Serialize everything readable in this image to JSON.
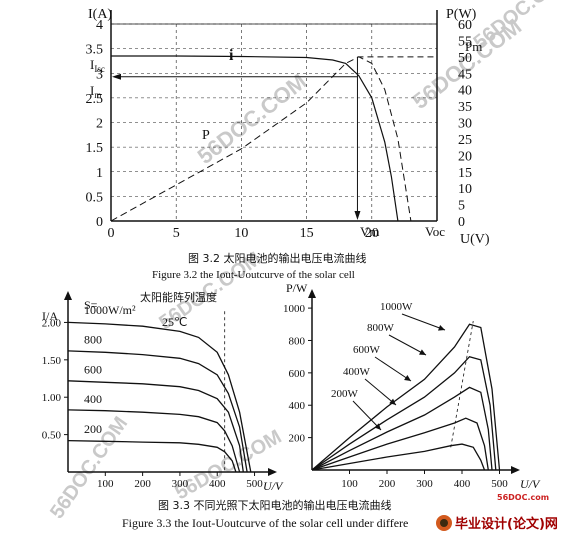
{
  "fig1": {
    "y_left_label": "I(A)",
    "y_right_label": "P(W)",
    "x_label": "U(V)",
    "y_left_ticks": [
      "0",
      "0.5",
      "1",
      "1.5",
      "2",
      "2.5",
      "3",
      "3.5",
      "4"
    ],
    "y_right_ticks": [
      "0",
      "5",
      "10",
      "15",
      "20",
      "25",
      "30",
      "35",
      "40",
      "45",
      "50",
      "55",
      "60"
    ],
    "x_ticks": [
      "0",
      "5",
      "10",
      "15",
      "20"
    ],
    "labels": {
      "isc": "Isc",
      "im": "Im",
      "i_curve": "i",
      "p_curve": "P",
      "pm": "Pm",
      "vm": "Vm",
      "voc": "Voc"
    },
    "caption_cn": "图 3.2  太阳电池的输出电压电流曲线",
    "caption_en": "Figure 3.2  the Iout-Uoutcurve of the solar cell"
  },
  "fig2": {
    "y_label": "I/A",
    "x_label": "U/V",
    "s_label": "S=",
    "header": "太阳能阵列温度",
    "temp": "25℃",
    "irradiances": [
      "1000W/m²",
      "800",
      "600",
      "400",
      "200"
    ],
    "y_ticks": [
      "0.50",
      "1.00",
      "1.50",
      "2.00"
    ],
    "x_ticks": [
      "100",
      "200",
      "300",
      "400",
      "500"
    ]
  },
  "fig3": {
    "y_label": "P/W",
    "x_label": "U/V",
    "y_ticks": [
      "200",
      "400",
      "600",
      "800",
      "1000"
    ],
    "x_ticks": [
      "100",
      "200",
      "300",
      "400",
      "500"
    ],
    "series": [
      "1000W",
      "800W",
      "600W",
      "400W",
      "200W"
    ]
  },
  "caption3_cn": "图 3.3   不同光照下太阳电池的输出电压电流曲线",
  "caption3_en": "Figure 3.3   the Iout-Uoutcurve of the solar cell under differe",
  "watermarks": [
    "56DOC.COM",
    "56DOC.COM",
    "56DOC.COM",
    "56DOC.COM",
    "56DOC.COM",
    "56DOC.COM"
  ],
  "logo_url": "56DOC.com",
  "logo_text": "毕业设计(论文)网",
  "chart_data": [
    {
      "type": "line",
      "xlabel": "U(V)",
      "ylabel": "I(A)",
      "y2label": "P(W)",
      "xlim": [
        0,
        25
      ],
      "ylim": [
        0,
        4
      ],
      "y2lim": [
        0,
        60
      ],
      "grid": true,
      "series": [
        {
          "name": "i",
          "x": [
            0,
            5,
            10,
            15,
            17,
            18,
            19,
            20,
            21,
            21.5,
            22
          ],
          "values": [
            3.35,
            3.35,
            3.34,
            3.32,
            3.27,
            3.2,
            2.95,
            2.5,
            1.6,
            0.9,
            0
          ]
        },
        {
          "name": "P",
          "x": [
            0,
            5,
            10,
            15,
            17,
            18,
            19,
            20,
            21,
            22,
            23
          ],
          "values": [
            0,
            11,
            22,
            36,
            44,
            48,
            50,
            48,
            40,
            25,
            0
          ]
        }
      ]
    },
    {
      "type": "line",
      "xlabel": "U/V",
      "ylabel": "I/A",
      "xlim": [
        0,
        520
      ],
      "ylim": [
        0,
        2.3
      ],
      "series": [
        {
          "name": "1000W/m²",
          "x": [
            0,
            100,
            200,
            300,
            350,
            400,
            430,
            460,
            490
          ],
          "values": [
            2.0,
            1.98,
            1.95,
            1.88,
            1.8,
            1.6,
            1.3,
            0.8,
            0
          ]
        },
        {
          "name": "800",
          "x": [
            0,
            100,
            200,
            300,
            350,
            400,
            430,
            460,
            480
          ],
          "values": [
            1.62,
            1.6,
            1.57,
            1.52,
            1.45,
            1.3,
            1.05,
            0.6,
            0
          ]
        },
        {
          "name": "600",
          "x": [
            0,
            100,
            200,
            300,
            350,
            400,
            430,
            460,
            470
          ],
          "values": [
            1.22,
            1.2,
            1.18,
            1.14,
            1.09,
            0.98,
            0.8,
            0.35,
            0
          ]
        },
        {
          "name": "400",
          "x": [
            0,
            100,
            200,
            300,
            350,
            400,
            420,
            440,
            460
          ],
          "values": [
            0.83,
            0.82,
            0.8,
            0.77,
            0.74,
            0.66,
            0.55,
            0.35,
            0
          ]
        },
        {
          "name": "200",
          "x": [
            0,
            100,
            200,
            300,
            350,
            400,
            420,
            440,
            450
          ],
          "values": [
            0.42,
            0.41,
            0.4,
            0.39,
            0.37,
            0.33,
            0.27,
            0.15,
            0
          ]
        }
      ]
    },
    {
      "type": "line",
      "xlabel": "U/V",
      "ylabel": "P/W",
      "xlim": [
        0,
        520
      ],
      "ylim": [
        0,
        1050
      ],
      "series": [
        {
          "name": "1000W",
          "x": [
            0,
            100,
            200,
            300,
            380,
            420,
            450,
            480,
            500
          ],
          "values": [
            0,
            200,
            390,
            560,
            760,
            900,
            880,
            500,
            0
          ]
        },
        {
          "name": "800W",
          "x": [
            0,
            100,
            200,
            300,
            380,
            420,
            450,
            475,
            490
          ],
          "values": [
            0,
            160,
            310,
            450,
            600,
            700,
            680,
            400,
            0
          ]
        },
        {
          "name": "600W",
          "x": [
            0,
            100,
            200,
            300,
            380,
            420,
            450,
            470,
            480
          ],
          "values": [
            0,
            120,
            235,
            340,
            450,
            510,
            480,
            250,
            0
          ]
        },
        {
          "name": "400W",
          "x": [
            0,
            100,
            200,
            300,
            380,
            410,
            440,
            460,
            470
          ],
          "values": [
            0,
            80,
            160,
            230,
            290,
            320,
            290,
            150,
            0
          ]
        },
        {
          "name": "200W",
          "x": [
            0,
            100,
            200,
            300,
            370,
            400,
            430,
            450,
            460
          ],
          "values": [
            0,
            40,
            80,
            115,
            150,
            160,
            140,
            60,
            0
          ]
        }
      ]
    }
  ]
}
